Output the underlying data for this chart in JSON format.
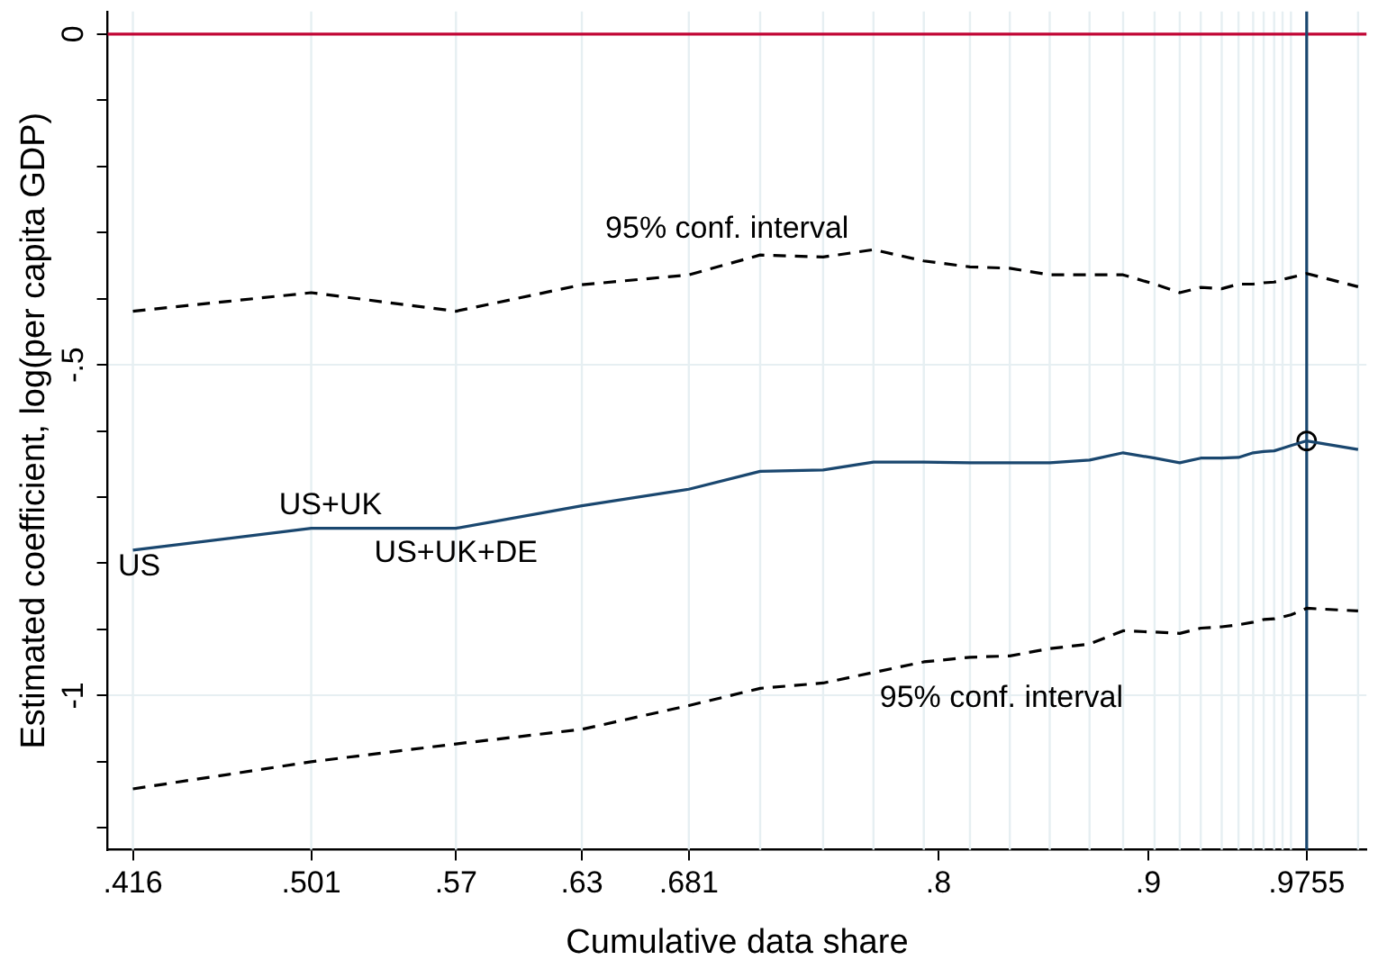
{
  "chart_data": {
    "type": "line",
    "xlabel": "Cumulative data share",
    "ylabel": "Estimated coefficient, log(per capita GDP)",
    "x": [
      0.416,
      0.501,
      0.57,
      0.63,
      0.681,
      0.715,
      0.745,
      0.769,
      0.793,
      0.815,
      0.834,
      0.853,
      0.872,
      0.888,
      0.903,
      0.915,
      0.925,
      0.935,
      0.943,
      0.95,
      0.955,
      0.96,
      0.964,
      0.968,
      0.9755,
      1.0
    ],
    "series": [
      {
        "color": "#1a476f",
        "line_style": "solid",
        "marker": "none",
        "values": [
          -0.78,
          -0.747,
          -0.747,
          -0.713,
          -0.688,
          -0.661,
          -0.659,
          -0.647,
          -0.647,
          -0.648,
          -0.648,
          -0.648,
          -0.644,
          -0.633,
          -0.641,
          -0.648,
          -0.641,
          -0.641,
          -0.64,
          -0.633,
          -0.631,
          -0.63,
          -0.626,
          -0.622,
          -0.615,
          -0.628
        ]
      },
      {
        "color": "#000000",
        "line_style": "dashed",
        "marker": "none",
        "values": [
          -0.419,
          -0.391,
          -0.419,
          -0.379,
          -0.364,
          -0.334,
          -0.337,
          -0.326,
          -0.343,
          -0.352,
          -0.354,
          -0.364,
          -0.364,
          -0.364,
          -0.378,
          -0.391,
          -0.383,
          -0.385,
          -0.378,
          -0.378,
          -0.376,
          -0.375,
          -0.371,
          -0.368,
          -0.362,
          -0.382
        ]
      },
      {
        "color": "#000000",
        "line_style": "dashed",
        "marker": "none",
        "values": [
          -1.141,
          -1.1,
          -1.073,
          -1.051,
          -1.015,
          -0.989,
          -0.981,
          -0.965,
          -0.949,
          -0.942,
          -0.94,
          -0.929,
          -0.922,
          -0.902,
          -0.904,
          -0.906,
          -0.898,
          -0.896,
          -0.893,
          -0.889,
          -0.885,
          -0.884,
          -0.881,
          -0.878,
          -0.868,
          -0.872
        ]
      },
      {
        "type": "scatter",
        "color": "#000000",
        "marker": "circle",
        "x": [
          0.9755
        ],
        "values": [
          -0.615
        ]
      }
    ],
    "xlim": [
      0.404,
      1.004
    ],
    "xticks": [
      {
        "value": 0.416,
        "label": ".416"
      },
      {
        "value": 0.501,
        "label": ".501"
      },
      {
        "value": 0.57,
        "label": ".57"
      },
      {
        "value": 0.63,
        "label": ".63"
      },
      {
        "value": 0.681,
        "label": ".681"
      },
      {
        "value": 0.8,
        "label": ".8"
      },
      {
        "value": 0.9,
        "label": ".9"
      },
      {
        "value": 0.9755,
        "label": ".9755"
      }
    ],
    "ylim": [
      -1.233,
      0.034
    ],
    "yticks": [
      0,
      {
        "value": -0.1,
        "label": null
      },
      {
        "value": -0.2,
        "label": null
      },
      {
        "value": -0.3,
        "label": null
      },
      {
        "value": -0.4,
        "label": null
      },
      {
        "value": -0.5,
        "label": "-.5"
      },
      {
        "value": -0.6,
        "label": null
      },
      {
        "value": -0.7,
        "label": null
      },
      {
        "value": -0.8,
        "label": null
      },
      {
        "value": -0.9,
        "label": null
      },
      {
        "value": -1,
        "label": "-1"
      },
      {
        "value": -1.1,
        "label": null
      },
      {
        "value": -1.2,
        "label": null
      }
    ],
    "grid": "y",
    "ref_lines": [
      {
        "axis": "x",
        "value": 0.416,
        "color": "#e6eff2"
      },
      {
        "axis": "x",
        "value": 0.501,
        "color": "#e6eff2"
      },
      {
        "axis": "x",
        "value": 0.57,
        "color": "#e6eff2"
      },
      {
        "axis": "x",
        "value": 0.63,
        "color": "#e6eff2"
      },
      {
        "axis": "x",
        "value": 0.681,
        "color": "#e6eff2"
      },
      {
        "axis": "x",
        "value": 0.715,
        "color": "#e6eff2"
      },
      {
        "axis": "x",
        "value": 0.745,
        "color": "#e6eff2"
      },
      {
        "axis": "x",
        "value": 0.769,
        "color": "#e6eff2"
      },
      {
        "axis": "x",
        "value": 0.793,
        "color": "#e6eff2"
      },
      {
        "axis": "x",
        "value": 0.815,
        "color": "#e6eff2"
      },
      {
        "axis": "x",
        "value": 0.834,
        "color": "#e6eff2"
      },
      {
        "axis": "x",
        "value": 0.853,
        "color": "#e6eff2"
      },
      {
        "axis": "x",
        "value": 0.872,
        "color": "#e6eff2"
      },
      {
        "axis": "x",
        "value": 0.888,
        "color": "#e6eff2"
      },
      {
        "axis": "x",
        "value": 0.903,
        "color": "#e6eff2"
      },
      {
        "axis": "x",
        "value": 0.915,
        "color": "#e6eff2"
      },
      {
        "axis": "x",
        "value": 0.925,
        "color": "#e6eff2"
      },
      {
        "axis": "x",
        "value": 0.935,
        "color": "#e6eff2"
      },
      {
        "axis": "x",
        "value": 0.943,
        "color": "#e6eff2"
      },
      {
        "axis": "x",
        "value": 0.95,
        "color": "#e6eff2"
      },
      {
        "axis": "x",
        "value": 0.955,
        "color": "#e6eff2"
      },
      {
        "axis": "x",
        "value": 0.96,
        "color": "#e6eff2"
      },
      {
        "axis": "x",
        "value": 0.964,
        "color": "#e6eff2"
      },
      {
        "axis": "x",
        "value": 0.968,
        "color": "#e6eff2"
      },
      {
        "axis": "x",
        "value": 1.0,
        "color": "#e6eff2"
      },
      {
        "axis": "y",
        "value": 0,
        "color": "#c10534",
        "line_style": "solid"
      },
      {
        "axis": "x",
        "value": 0.9755,
        "color": "#1a476f",
        "line_style": "solid"
      }
    ],
    "annotations": [
      {
        "text": "US",
        "x": 0.419,
        "y": -0.806
      },
      "US+UK",
      {
        "text": "US+UK+DE",
        "x": 0.57,
        "y": -0.785
      },
      "95% conf. interval",
      "95% conf. interval"
    ]
  }
}
